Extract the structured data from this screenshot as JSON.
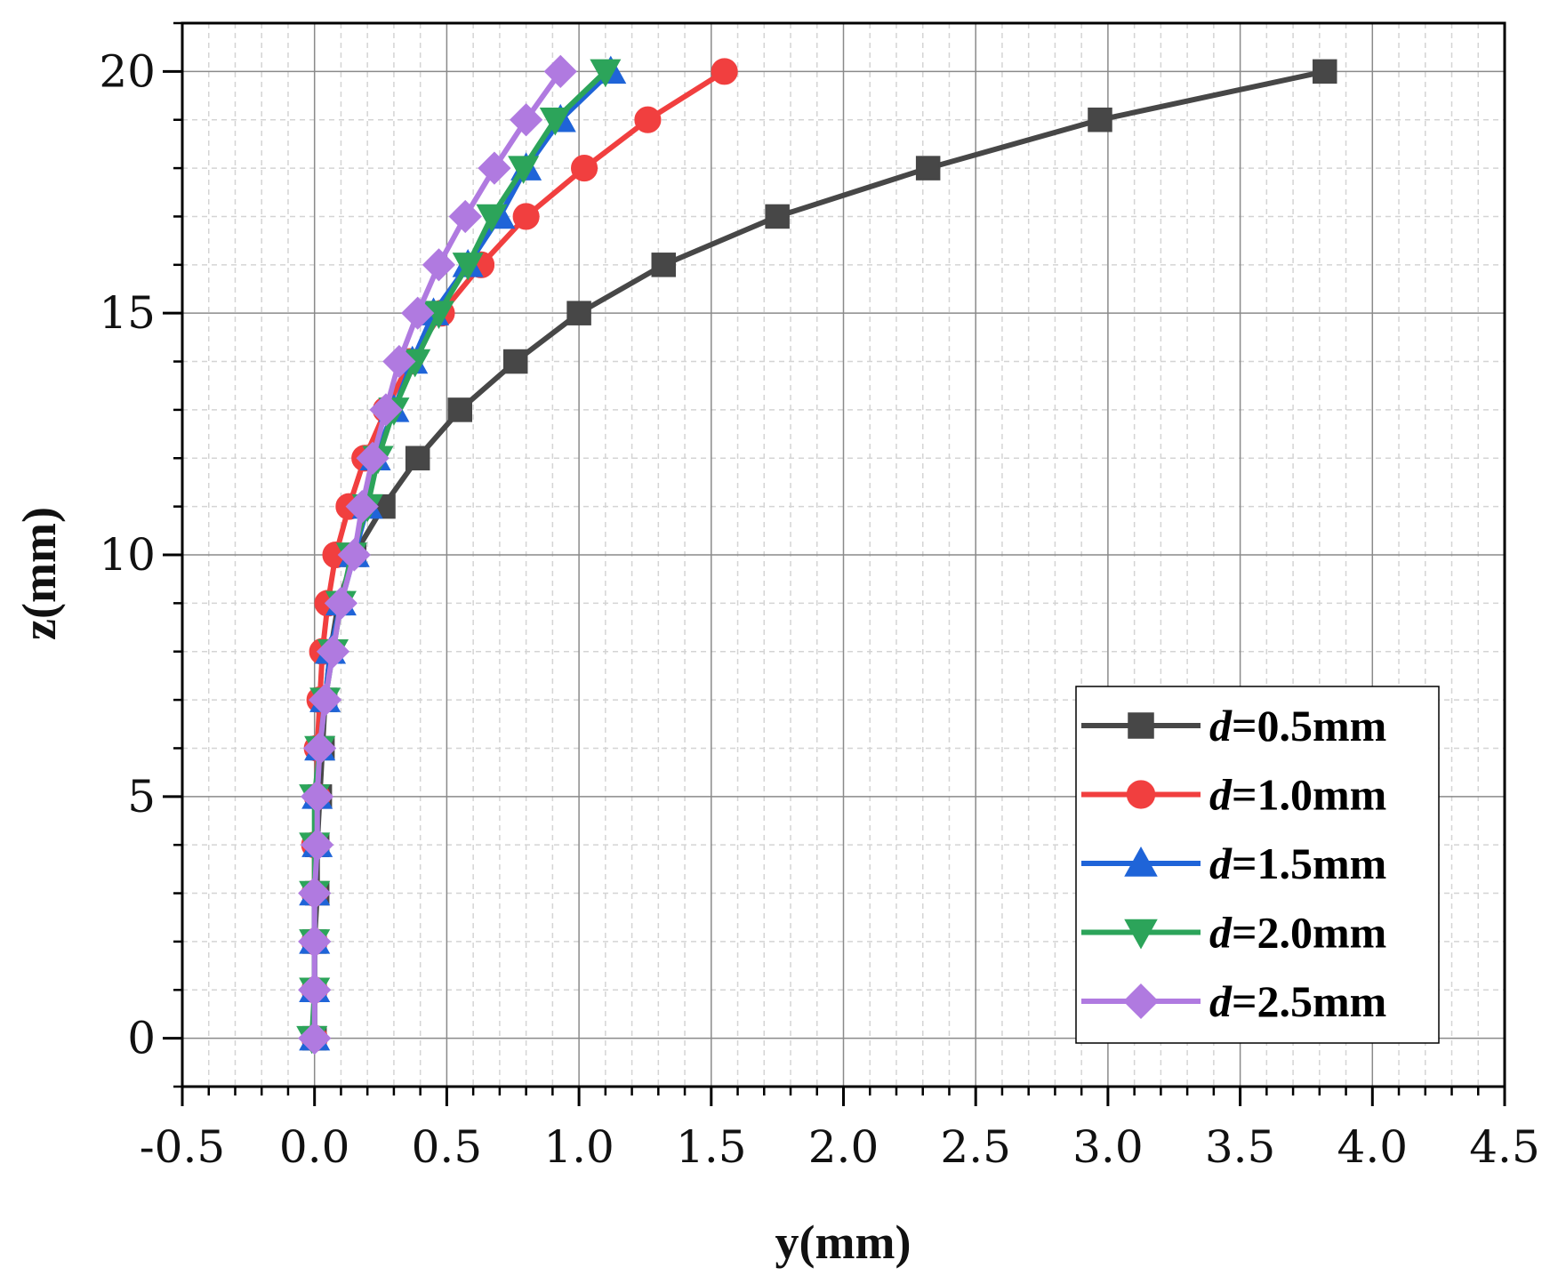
{
  "chart_data": {
    "type": "line",
    "title": "",
    "xlabel": "y(mm)",
    "ylabel": "z(mm)",
    "xlim": [
      -0.5,
      4.5
    ],
    "ylim": [
      -1,
      21
    ],
    "xticks": [
      -0.5,
      0.0,
      0.5,
      1.0,
      1.5,
      2.0,
      2.5,
      3.0,
      3.5,
      4.0,
      4.5
    ],
    "xtick_labels": [
      "-0.5",
      "0.0",
      "0.5",
      "1.0",
      "1.5",
      "2.0",
      "2.5",
      "3.0",
      "3.5",
      "4.0",
      "4.5"
    ],
    "yticks": [
      0,
      5,
      10,
      15,
      20
    ],
    "ytick_labels": [
      "0",
      "5",
      "10",
      "15",
      "20"
    ],
    "grid": true,
    "legend_position": "bottom-right",
    "z": [
      0,
      1,
      2,
      3,
      4,
      5,
      6,
      7,
      8,
      9,
      10,
      11,
      12,
      13,
      14,
      15,
      16,
      17,
      18,
      19,
      20
    ],
    "series": [
      {
        "name": "d=0.5mm",
        "legend_italic": "d",
        "legend_rest": "=0.5mm",
        "color": "#474747",
        "marker": "square",
        "y": [
          0.0,
          0.0,
          0.0,
          0.01,
          0.01,
          0.02,
          0.03,
          0.04,
          0.06,
          0.09,
          0.15,
          0.26,
          0.39,
          0.55,
          0.76,
          1.0,
          1.32,
          1.75,
          2.32,
          2.97,
          3.82
        ]
      },
      {
        "name": "d=1.0mm",
        "legend_italic": "d",
        "legend_rest": "=1.0mm",
        "color": "#f13f3f",
        "marker": "circle",
        "y": [
          0.0,
          0.0,
          0.0,
          0.0,
          0.0,
          0.01,
          0.01,
          0.02,
          0.03,
          0.05,
          0.08,
          0.13,
          0.19,
          0.27,
          0.36,
          0.48,
          0.63,
          0.8,
          1.02,
          1.26,
          1.55
        ]
      },
      {
        "name": "d=1.5mm",
        "legend_italic": "d",
        "legend_rest": "=1.5mm",
        "color": "#1f64d8",
        "marker": "triangle-up",
        "y": [
          0.0,
          0.0,
          0.0,
          0.0,
          0.01,
          0.01,
          0.02,
          0.04,
          0.06,
          0.1,
          0.15,
          0.2,
          0.23,
          0.3,
          0.37,
          0.45,
          0.58,
          0.7,
          0.8,
          0.93,
          1.12
        ]
      },
      {
        "name": "d=2.0mm",
        "legend_italic": "d",
        "legend_rest": "=2.0mm",
        "color": "#2ca45a",
        "marker": "triangle-down",
        "y": [
          -0.01,
          0.0,
          0.0,
          0.0,
          0.0,
          0.0,
          0.02,
          0.04,
          0.07,
          0.1,
          0.14,
          0.2,
          0.24,
          0.3,
          0.38,
          0.47,
          0.58,
          0.67,
          0.79,
          0.91,
          1.1
        ]
      },
      {
        "name": "d=2.5mm",
        "legend_italic": "d",
        "legend_rest": "=2.5mm",
        "color": "#b07ae0",
        "marker": "diamond",
        "y": [
          0.0,
          0.0,
          0.0,
          0.0,
          0.01,
          0.01,
          0.02,
          0.04,
          0.07,
          0.1,
          0.15,
          0.18,
          0.22,
          0.27,
          0.32,
          0.39,
          0.47,
          0.57,
          0.68,
          0.8,
          0.93
        ]
      }
    ]
  }
}
